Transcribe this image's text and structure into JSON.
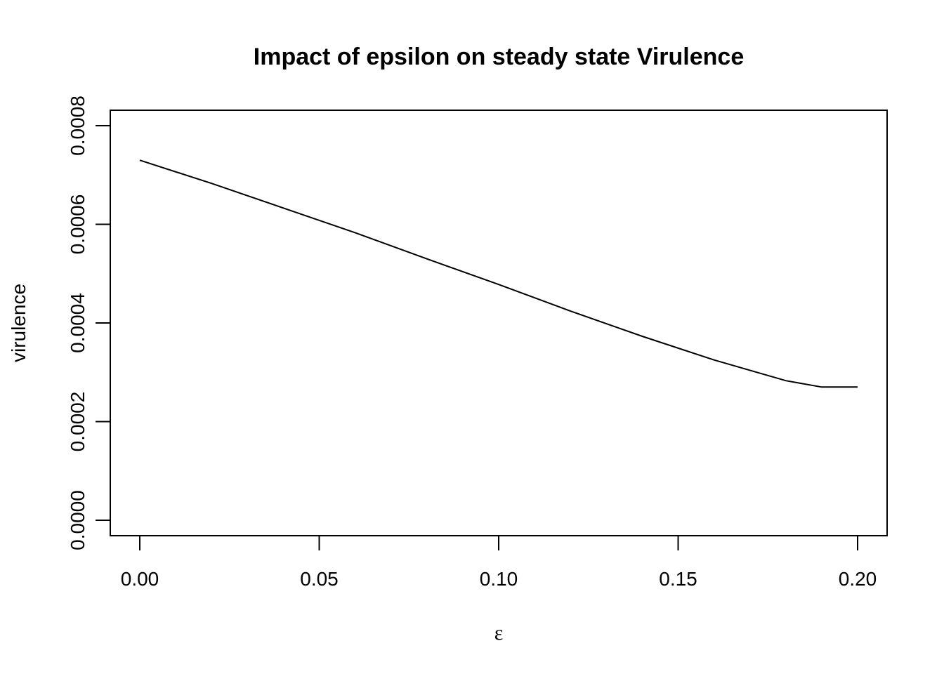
{
  "chart_data": {
    "type": "line",
    "title": "Impact of epsilon on steady state Virulence",
    "xlabel": "ε",
    "ylabel": "virulence",
    "xlim": [
      0.0,
      0.2
    ],
    "ylim": [
      0.0,
      0.0008
    ],
    "grid": false,
    "legend": "none",
    "x_ticks": [
      {
        "value": 0.0,
        "label": "0.00"
      },
      {
        "value": 0.05,
        "label": "0.05"
      },
      {
        "value": 0.1,
        "label": "0.10"
      },
      {
        "value": 0.15,
        "label": "0.15"
      },
      {
        "value": 0.2,
        "label": "0.20"
      }
    ],
    "y_ticks": [
      {
        "value": 0.0,
        "label": "0.0000"
      },
      {
        "value": 0.0002,
        "label": "0.0002"
      },
      {
        "value": 0.0004,
        "label": "0.0004"
      },
      {
        "value": 0.0006,
        "label": "0.0006"
      },
      {
        "value": 0.0008,
        "label": "0.0008"
      }
    ],
    "series": [
      {
        "color": "#000000",
        "x": [
          0.0,
          0.02,
          0.04,
          0.06,
          0.08,
          0.1,
          0.12,
          0.14,
          0.16,
          0.18,
          0.19,
          0.2
        ],
        "y": [
          0.00073,
          0.000683,
          0.000633,
          0.000583,
          0.00053,
          0.000478,
          0.000424,
          0.000373,
          0.000325,
          0.000283,
          0.00027,
          0.00027
        ]
      }
    ]
  }
}
